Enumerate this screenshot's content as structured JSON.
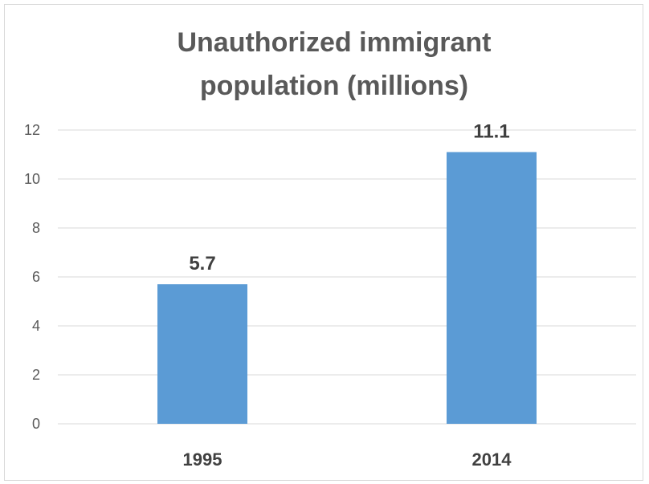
{
  "chart_data": {
    "type": "bar",
    "title_lines": [
      "Unauthorized immigrant",
      "population (millions)"
    ],
    "categories": [
      "1995",
      "2014"
    ],
    "values": [
      5.7,
      11.1
    ],
    "data_labels": [
      "5.7",
      "11.1"
    ],
    "y_ticks": [
      "0",
      "2",
      "4",
      "6",
      "8",
      "10",
      "12"
    ],
    "ylim": [
      0,
      12
    ],
    "xlabel": "",
    "ylabel": "",
    "grid": true,
    "legend": "none",
    "bar_color": "#5b9bd5",
    "grid_color": "#d9d9d9"
  }
}
